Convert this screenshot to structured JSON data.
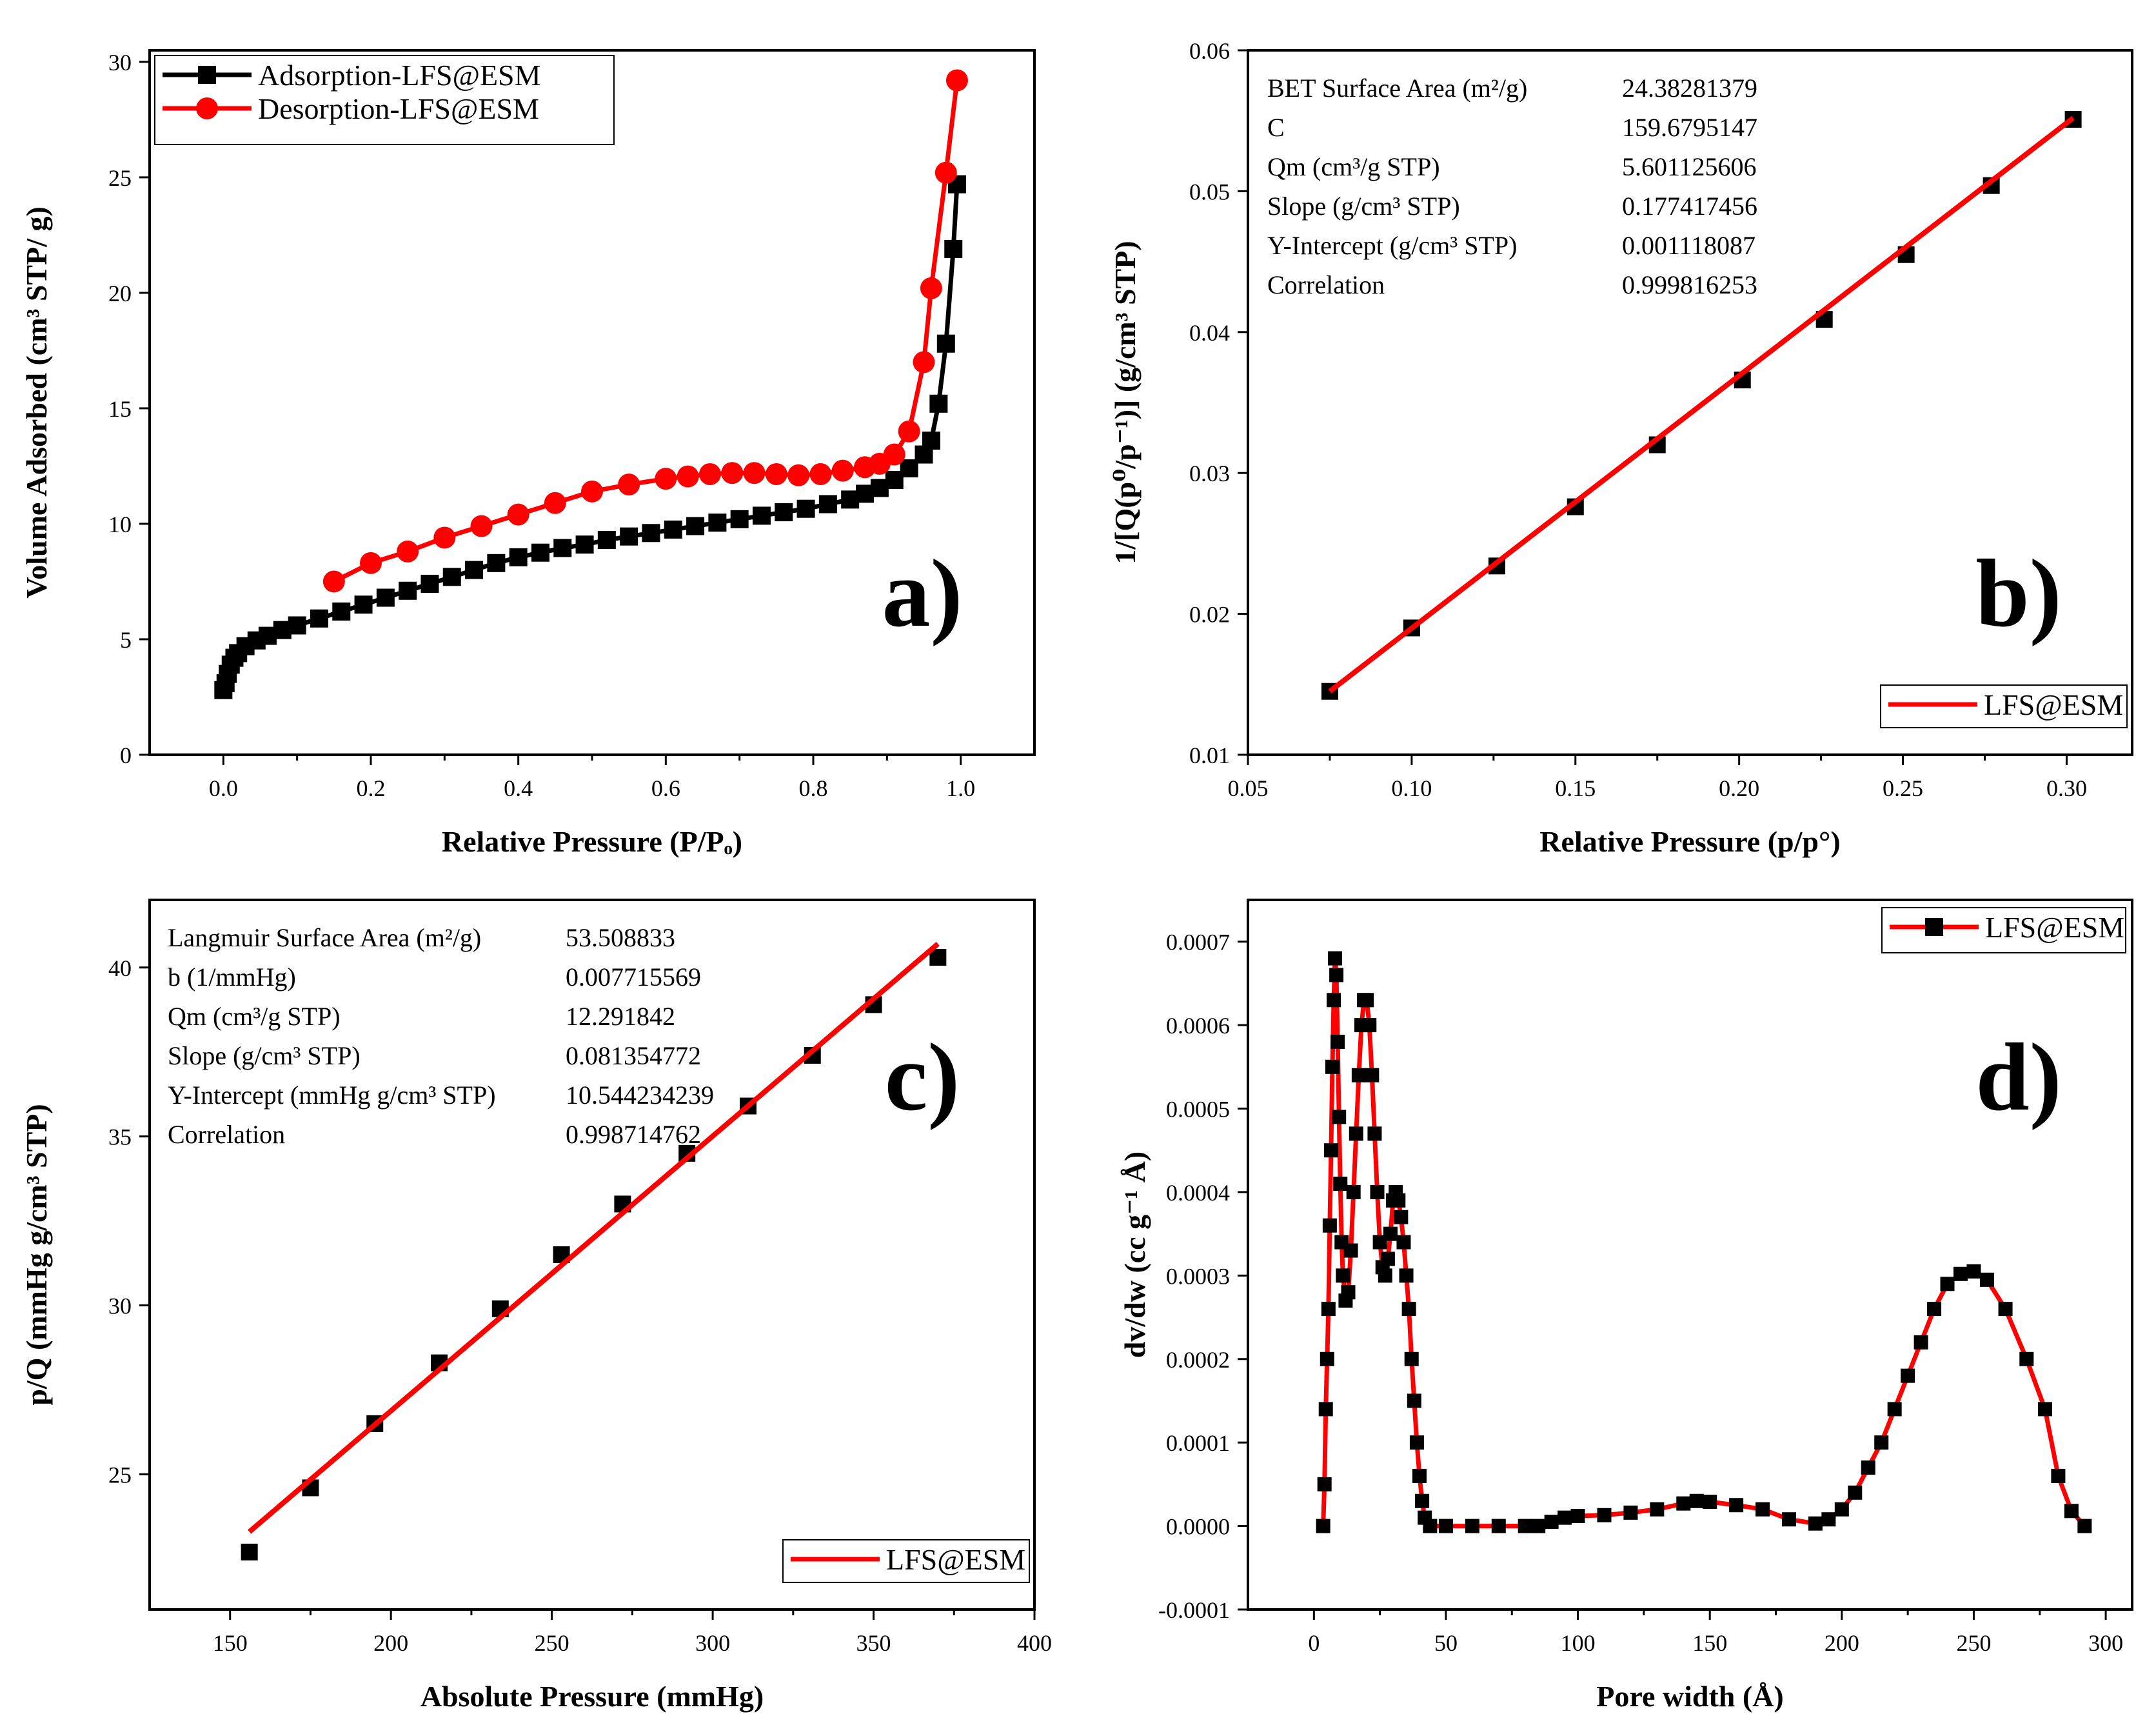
{
  "chart_data": [
    {
      "panel": "a)",
      "type": "line",
      "xlabel": "Relative Pressure (P/Pₒ)",
      "ylabel": "Volume Adsorbed (cm³ STP/ g)",
      "xlim": [
        -0.1,
        1.1
      ],
      "ylim": [
        0,
        30.5
      ],
      "xticks": [
        0.0,
        0.2,
        0.4,
        0.6,
        0.8,
        1.0
      ],
      "xtick_labels": [
        "0.0",
        "0.2",
        "0.4",
        "0.6",
        "0.8",
        "1.0"
      ],
      "yticks": [
        0,
        5,
        10,
        15,
        20,
        25,
        30
      ],
      "ytick_labels": [
        "0",
        "5",
        "10",
        "15",
        "20",
        "25",
        "30"
      ],
      "legend_position": "top-left",
      "series": [
        {
          "name": "Adsorption-LFS@ESM",
          "color": "#000000",
          "marker": "square",
          "points": [
            [
              0.0,
              2.8
            ],
            [
              0.003,
              3.1
            ],
            [
              0.006,
              3.5
            ],
            [
              0.01,
              3.9
            ],
            [
              0.015,
              4.2
            ],
            [
              0.02,
              4.4
            ],
            [
              0.03,
              4.7
            ],
            [
              0.045,
              4.95
            ],
            [
              0.06,
              5.15
            ],
            [
              0.08,
              5.4
            ],
            [
              0.1,
              5.6
            ],
            [
              0.13,
              5.9
            ],
            [
              0.16,
              6.2
            ],
            [
              0.19,
              6.5
            ],
            [
              0.22,
              6.8
            ],
            [
              0.25,
              7.1
            ],
            [
              0.28,
              7.4
            ],
            [
              0.31,
              7.7
            ],
            [
              0.34,
              8.0
            ],
            [
              0.37,
              8.3
            ],
            [
              0.4,
              8.55
            ],
            [
              0.43,
              8.75
            ],
            [
              0.46,
              8.95
            ],
            [
              0.49,
              9.1
            ],
            [
              0.52,
              9.3
            ],
            [
              0.55,
              9.45
            ],
            [
              0.58,
              9.6
            ],
            [
              0.61,
              9.75
            ],
            [
              0.64,
              9.9
            ],
            [
              0.67,
              10.05
            ],
            [
              0.7,
              10.2
            ],
            [
              0.73,
              10.35
            ],
            [
              0.76,
              10.5
            ],
            [
              0.79,
              10.65
            ],
            [
              0.82,
              10.85
            ],
            [
              0.85,
              11.05
            ],
            [
              0.87,
              11.3
            ],
            [
              0.89,
              11.55
            ],
            [
              0.91,
              11.9
            ],
            [
              0.93,
              12.4
            ],
            [
              0.95,
              13.0
            ],
            [
              0.96,
              13.6
            ],
            [
              0.97,
              15.2
            ],
            [
              0.98,
              17.8
            ],
            [
              0.99,
              21.9
            ],
            [
              0.995,
              24.7
            ]
          ]
        },
        {
          "name": "Desorption-LFS@ESM",
          "color": "#ff0000",
          "marker": "circle",
          "points": [
            [
              0.15,
              7.5
            ],
            [
              0.2,
              8.3
            ],
            [
              0.25,
              8.8
            ],
            [
              0.3,
              9.4
            ],
            [
              0.35,
              9.9
            ],
            [
              0.4,
              10.4
            ],
            [
              0.45,
              10.9
            ],
            [
              0.5,
              11.4
            ],
            [
              0.55,
              11.7
            ],
            [
              0.6,
              11.95
            ],
            [
              0.63,
              12.05
            ],
            [
              0.66,
              12.15
            ],
            [
              0.69,
              12.2
            ],
            [
              0.72,
              12.2
            ],
            [
              0.75,
              12.15
            ],
            [
              0.78,
              12.1
            ],
            [
              0.81,
              12.15
            ],
            [
              0.84,
              12.3
            ],
            [
              0.87,
              12.45
            ],
            [
              0.89,
              12.6
            ],
            [
              0.91,
              13.0
            ],
            [
              0.93,
              14.0
            ],
            [
              0.95,
              17.0
            ],
            [
              0.96,
              20.2
            ],
            [
              0.98,
              25.2
            ],
            [
              0.995,
              29.2
            ]
          ]
        }
      ]
    },
    {
      "panel": "b)",
      "type": "scatter",
      "xlabel": "Relative Pressure (p/p°)",
      "ylabel": "1/[Q(p⁰/p⁻¹)] (g/cm³ STP)",
      "xlim": [
        0.05,
        0.32
      ],
      "ylim": [
        0.01,
        0.06
      ],
      "xticks": [
        0.05,
        0.1,
        0.15,
        0.2,
        0.25,
        0.3
      ],
      "xtick_labels": [
        "0.05",
        "0.10",
        "0.15",
        "0.20",
        "0.25",
        "0.30"
      ],
      "yticks": [
        0.01,
        0.02,
        0.03,
        0.04,
        0.05,
        0.06
      ],
      "ytick_labels": [
        "0.01",
        "0.02",
        "0.03",
        "0.04",
        "0.05",
        "0.06"
      ],
      "legend_position": "bottom-right",
      "legend": "LFS@ESM",
      "fit_line": {
        "color": "#ff0000",
        "from": [
          0.075,
          0.0145
        ],
        "to": [
          0.302,
          0.0552
        ]
      },
      "points": [
        [
          0.075,
          0.0145
        ],
        [
          0.1,
          0.019
        ],
        [
          0.126,
          0.0234
        ],
        [
          0.15,
          0.0276
        ],
        [
          0.175,
          0.032
        ],
        [
          0.201,
          0.0366
        ],
        [
          0.226,
          0.0409
        ],
        [
          0.251,
          0.0455
        ],
        [
          0.277,
          0.0504
        ],
        [
          0.302,
          0.0551
        ]
      ],
      "info": [
        {
          "label": "BET Surface Area (m²/g)",
          "value": "24.38281379"
        },
        {
          "label": "C",
          "value": "159.6795147"
        },
        {
          "label": "Qm (cm³/g STP)",
          "value": "5.601125606"
        },
        {
          "label": "Slope (g/cm³ STP)",
          "value": "0.177417456"
        },
        {
          "label": "Y-Intercept (g/cm³ STP)",
          "value": "0.001118087"
        },
        {
          "label": "Correlation",
          "value": "0.999816253"
        }
      ]
    },
    {
      "panel": "c)",
      "type": "scatter",
      "xlabel": "Absolute Pressure (mmHg)",
      "ylabel": "p/Q (mmHg g/cm³ STP)",
      "xlim": [
        125,
        400
      ],
      "ylim": [
        21,
        42
      ],
      "xticks": [
        150,
        200,
        250,
        300,
        350,
        400
      ],
      "xtick_labels": [
        "150",
        "200",
        "250",
        "300",
        "350",
        "400"
      ],
      "yticks": [
        25,
        30,
        35,
        40
      ],
      "ytick_labels": [
        "25",
        "30",
        "35",
        "40"
      ],
      "legend_position": "bottom-right",
      "legend": "LFS@ESM",
      "fit_line": {
        "color": "#ff0000",
        "from": [
          156,
          23.3
        ],
        "to": [
          370,
          40.7
        ]
      },
      "points": [
        [
          156,
          22.7
        ],
        [
          175,
          24.6
        ],
        [
          195,
          26.5
        ],
        [
          215,
          28.3
        ],
        [
          234,
          29.9
        ],
        [
          253,
          31.5
        ],
        [
          272,
          33.0
        ],
        [
          292,
          34.5
        ],
        [
          311,
          35.9
        ],
        [
          331,
          37.4
        ],
        [
          350,
          38.9
        ],
        [
          370,
          40.3
        ]
      ],
      "info": [
        {
          "label": "Langmuir Surface Area (m²/g)",
          "value": "53.508833"
        },
        {
          "label": "b (1/mmHg)",
          "value": "0.007715569"
        },
        {
          "label": "Qm (cm³/g STP)",
          "value": "12.291842"
        },
        {
          "label": "Slope (g/cm³ STP)",
          "value": "0.081354772"
        },
        {
          "label": "Y-Intercept (mmHg g/cm³ STP)",
          "value": "10.544234239"
        },
        {
          "label": "Correlation",
          "value": "0.998714762"
        }
      ]
    },
    {
      "panel": "d)",
      "type": "line",
      "xlabel": "Pore width (Å)",
      "ylabel": "dv/dw (cc g⁻¹ Å)",
      "xlim": [
        -25,
        310
      ],
      "ylim": [
        -0.0001,
        0.00075
      ],
      "xticks": [
        0,
        50,
        100,
        150,
        200,
        250,
        300
      ],
      "xtick_labels": [
        "0",
        "50",
        "100",
        "150",
        "200",
        "250",
        "300"
      ],
      "yticks": [
        -0.0001,
        0.0,
        0.0001,
        0.0002,
        0.0003,
        0.0004,
        0.0005,
        0.0006,
        0.0007
      ],
      "ytick_labels": [
        "-0.0001",
        "0.0000",
        "0.0001",
        "0.0002",
        "0.0003",
        "0.0004",
        "0.0005",
        "0.0006",
        "0.0007"
      ],
      "legend_position": "top-right",
      "legend": "LFS@ESM",
      "series": [
        {
          "name": "LFS@ESM",
          "color": "#ff0000",
          "marker_color": "#000000",
          "marker": "square",
          "points": [
            [
              3.5,
              0.0
            ],
            [
              4,
              5e-05
            ],
            [
              4.5,
              0.00014
            ],
            [
              5,
              0.0002
            ],
            [
              5.5,
              0.00026
            ],
            [
              6,
              0.00036
            ],
            [
              6.5,
              0.00045
            ],
            [
              7,
              0.00055
            ],
            [
              7.5,
              0.00063
            ],
            [
              8,
              0.00068
            ],
            [
              8.5,
              0.00066
            ],
            [
              9,
              0.00058
            ],
            [
              9.5,
              0.00049
            ],
            [
              10,
              0.00041
            ],
            [
              10.5,
              0.00034
            ],
            [
              11,
              0.0003
            ],
            [
              12,
              0.00027
            ],
            [
              13,
              0.00028
            ],
            [
              14,
              0.00033
            ],
            [
              15,
              0.0004
            ],
            [
              16,
              0.00047
            ],
            [
              17,
              0.00054
            ],
            [
              18,
              0.0006
            ],
            [
              19,
              0.00063
            ],
            [
              20,
              0.00063
            ],
            [
              21,
              0.0006
            ],
            [
              22,
              0.00054
            ],
            [
              23,
              0.00047
            ],
            [
              24,
              0.0004
            ],
            [
              25,
              0.00034
            ],
            [
              26,
              0.00031
            ],
            [
              27,
              0.0003
            ],
            [
              28,
              0.00032
            ],
            [
              29,
              0.00035
            ],
            [
              30,
              0.00039
            ],
            [
              31,
              0.0004
            ],
            [
              32,
              0.00039
            ],
            [
              33,
              0.00037
            ],
            [
              34,
              0.00034
            ],
            [
              35,
              0.0003
            ],
            [
              36,
              0.00026
            ],
            [
              37,
              0.0002
            ],
            [
              38,
              0.00015
            ],
            [
              39,
              0.0001
            ],
            [
              40,
              6e-05
            ],
            [
              41,
              3e-05
            ],
            [
              42,
              1e-05
            ],
            [
              44,
              0.0
            ],
            [
              50,
              0.0
            ],
            [
              60,
              0.0
            ],
            [
              70,
              0.0
            ],
            [
              80,
              0.0
            ],
            [
              85,
              0.0
            ],
            [
              90,
              5e-06
            ],
            [
              95,
              1e-05
            ],
            [
              100,
              1.2e-05
            ],
            [
              110,
              1.3e-05
            ],
            [
              120,
              1.6e-05
            ],
            [
              130,
              2e-05
            ],
            [
              140,
              2.7e-05
            ],
            [
              145,
              3e-05
            ],
            [
              150,
              2.9e-05
            ],
            [
              160,
              2.5e-05
            ],
            [
              170,
              2e-05
            ],
            [
              180,
              8e-06
            ],
            [
              190,
              3e-06
            ],
            [
              195,
              8e-06
            ],
            [
              200,
              2e-05
            ],
            [
              205,
              4e-05
            ],
            [
              210,
              7e-05
            ],
            [
              215,
              0.0001
            ],
            [
              220,
              0.00014
            ],
            [
              225,
              0.00018
            ],
            [
              230,
              0.00022
            ],
            [
              235,
              0.00026
            ],
            [
              240,
              0.00029
            ],
            [
              245,
              0.000302
            ],
            [
              250,
              0.000305
            ],
            [
              255,
              0.000295
            ],
            [
              262,
              0.00026
            ],
            [
              270,
              0.0002
            ],
            [
              277,
              0.00014
            ],
            [
              282,
              6e-05
            ],
            [
              287,
              1.8e-05
            ],
            [
              292,
              0.0
            ]
          ]
        }
      ]
    }
  ]
}
